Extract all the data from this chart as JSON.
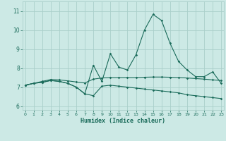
{
  "xlabel": "Humidex (Indice chaleur)",
  "background_color": "#cce9e5",
  "line_color": "#1a6b5a",
  "grid_color": "#aacfca",
  "x_ticks": [
    0,
    1,
    2,
    3,
    4,
    5,
    6,
    7,
    8,
    9,
    10,
    11,
    12,
    13,
    14,
    15,
    16,
    17,
    18,
    19,
    20,
    21,
    22,
    23
  ],
  "y_ticks": [
    6,
    7,
    8,
    9,
    10,
    11
  ],
  "ylim": [
    5.8,
    11.5
  ],
  "xlim": [
    -0.3,
    23.3
  ],
  "line1_x": [
    0,
    1,
    2,
    3,
    4,
    5,
    6,
    7,
    8,
    9,
    10,
    11,
    12,
    13,
    14,
    15,
    16,
    17,
    18,
    19,
    20,
    21,
    22,
    23
  ],
  "line1_y": [
    7.1,
    7.2,
    7.25,
    7.35,
    7.3,
    7.2,
    7.0,
    6.65,
    8.15,
    7.3,
    8.75,
    8.05,
    7.9,
    8.7,
    10.0,
    10.82,
    10.5,
    9.3,
    8.35,
    7.9,
    7.55,
    7.55,
    7.8,
    7.2
  ],
  "line2_x": [
    0,
    1,
    2,
    3,
    4,
    5,
    6,
    7,
    8,
    9,
    10,
    11,
    12,
    13,
    14,
    15,
    16,
    17,
    18,
    19,
    20,
    21,
    22,
    23
  ],
  "line2_y": [
    7.1,
    7.2,
    7.3,
    7.4,
    7.38,
    7.33,
    7.27,
    7.22,
    7.42,
    7.48,
    7.5,
    7.5,
    7.5,
    7.5,
    7.52,
    7.53,
    7.53,
    7.52,
    7.5,
    7.48,
    7.45,
    7.42,
    7.38,
    7.35
  ],
  "line3_x": [
    0,
    1,
    2,
    3,
    4,
    5,
    6,
    7,
    8,
    9,
    10,
    11,
    12,
    13,
    14,
    15,
    16,
    17,
    18,
    19,
    20,
    21,
    22,
    23
  ],
  "line3_y": [
    7.1,
    7.2,
    7.25,
    7.35,
    7.3,
    7.2,
    7.0,
    6.65,
    6.55,
    7.05,
    7.1,
    7.05,
    7.0,
    6.95,
    6.9,
    6.85,
    6.8,
    6.75,
    6.7,
    6.6,
    6.55,
    6.5,
    6.45,
    6.4
  ]
}
